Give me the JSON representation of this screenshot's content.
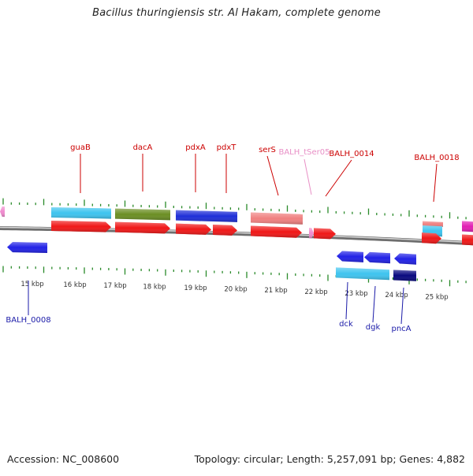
{
  "map": {
    "title": "Bacillus thuringiensis str. Al Hakam, complete genome",
    "accession_label": "Accession: NC_008600",
    "topology_label": "Topology: circular; Length: 5,257,091 bp; Genes: 4,882"
  },
  "colors": {
    "backbone": "#8f8f8f",
    "tick": "#2a8a2a",
    "label_red": "#cc0000",
    "label_pink": "#e88fc6",
    "label_blue": "#1a1aa8"
  },
  "ruler": {
    "labels": [
      "15 kbp",
      "16 kbp",
      "17 kbp",
      "18 kbp",
      "19 kbp",
      "20 kbp",
      "21 kbp",
      "22 kbp",
      "23 kbp",
      "24 kbp",
      "25 kbp"
    ]
  },
  "features": [
    {
      "track": 2,
      "start": 0,
      "end": 6,
      "color": "#f08ccf",
      "arrow": "left",
      "name": ""
    },
    {
      "track": -1,
      "start": 9,
      "end": 60,
      "color": "#2222e6",
      "arrow": "left",
      "name": "BALH_0008"
    },
    {
      "track": 2,
      "start": 65,
      "end": 141,
      "color": "#3ec4ef",
      "arrow": "none",
      "name": ""
    },
    {
      "track": 1,
      "start": 65,
      "end": 141,
      "color": "#f01818",
      "arrow": "right",
      "name": "guaB"
    },
    {
      "track": 2,
      "start": 146,
      "end": 216,
      "color": "#6b8e23",
      "arrow": "none",
      "name": ""
    },
    {
      "track": 1,
      "start": 146,
      "end": 216,
      "color": "#f01818",
      "arrow": "right",
      "name": "dacA"
    },
    {
      "track": 2,
      "start": 223,
      "end": 301,
      "color": "#1f2fd8",
      "arrow": "none",
      "name": ""
    },
    {
      "track": 1,
      "start": 223,
      "end": 268,
      "color": "#f01818",
      "arrow": "right",
      "name": "pdxA"
    },
    {
      "track": 1,
      "start": 270,
      "end": 301,
      "color": "#f01818",
      "arrow": "right",
      "name": "pdxT"
    },
    {
      "track": 2,
      "start": 318,
      "end": 384,
      "color": "#f08080",
      "arrow": "none",
      "name": ""
    },
    {
      "track": 1,
      "start": 318,
      "end": 383,
      "color": "#f01818",
      "arrow": "right",
      "name": "serS"
    },
    {
      "track": 1,
      "start": 392,
      "end": 398,
      "color": "#f08ccf",
      "arrow": "right",
      "name": "BALH_tSer05"
    },
    {
      "track": 1,
      "start": 398,
      "end": 426,
      "color": "#f01818",
      "arrow": "right",
      "name": "BALH_0014"
    },
    {
      "track": -1,
      "start": 427,
      "end": 461,
      "color": "#2222e6",
      "arrow": "left",
      "name": "dck"
    },
    {
      "track": -1,
      "start": 462,
      "end": 495,
      "color": "#2222e6",
      "arrow": "left",
      "name": "dgk"
    },
    {
      "track": -1,
      "start": 500,
      "end": 528,
      "color": "#2222e6",
      "arrow": "left",
      "name": "pncA"
    },
    {
      "track": -2,
      "start": 426,
      "end": 494,
      "color": "#3ec4ef",
      "arrow": "none",
      "name": ""
    },
    {
      "track": -2,
      "start": 499,
      "end": 528,
      "color": "#0a0a80",
      "arrow": "none",
      "name": ""
    },
    {
      "track": 3,
      "start": 536,
      "end": 562,
      "color": "#f08080",
      "arrow": "none",
      "name": ""
    },
    {
      "track": 2,
      "start": 536,
      "end": 561,
      "color": "#3ec4ef",
      "arrow": "none",
      "name": ""
    },
    {
      "track": 1,
      "start": 535,
      "end": 560,
      "color": "#f01818",
      "arrow": "right",
      "name": "BALH_0018"
    },
    {
      "track": 2,
      "start": 586,
      "end": 600,
      "color": "#e21fb4",
      "arrow": "none",
      "name": ""
    },
    {
      "track": 1,
      "start": 586,
      "end": 600,
      "color": "#f01818",
      "arrow": "none",
      "name": ""
    }
  ],
  "labels": [
    {
      "text": "guaB",
      "color": "label_red",
      "row": "top"
    },
    {
      "text": "dacA",
      "color": "label_red",
      "row": "top"
    },
    {
      "text": "pdxA",
      "color": "label_red",
      "row": "top"
    },
    {
      "text": "pdxT",
      "color": "label_red",
      "row": "top"
    },
    {
      "text": "serS",
      "color": "label_red",
      "row": "top"
    },
    {
      "text": "BALH_tSer05",
      "color": "label_pink",
      "row": "top"
    },
    {
      "text": "BALH_0014",
      "color": "label_red",
      "row": "top"
    },
    {
      "text": "BALH_0018",
      "color": "label_red",
      "row": "top"
    },
    {
      "text": "BALH_0008",
      "color": "label_blue",
      "row": "bottom"
    },
    {
      "text": "dck",
      "color": "label_blue",
      "row": "bottom"
    },
    {
      "text": "dgk",
      "color": "label_blue",
      "row": "bottom"
    },
    {
      "text": "pncA",
      "color": "label_blue",
      "row": "bottom"
    }
  ]
}
